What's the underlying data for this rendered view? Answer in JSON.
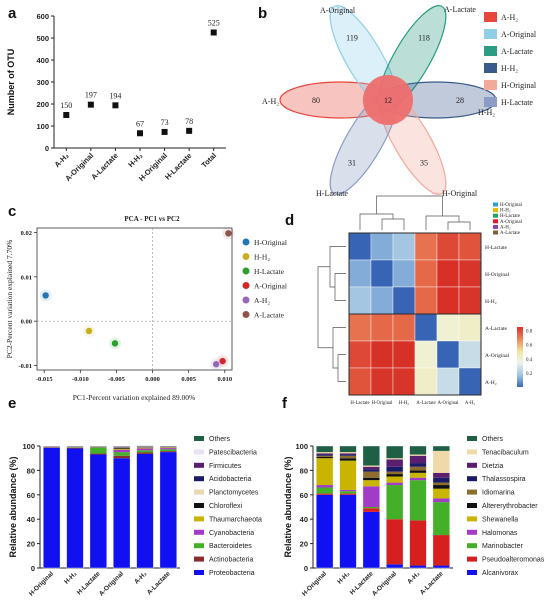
{
  "chart_data": [
    {
      "panel": "a",
      "type": "scatter",
      "categories": [
        "A-H₂",
        "A-Original",
        "A-Lactate",
        "H-H₂",
        "H-Original",
        "H-Lactate",
        "Total"
      ],
      "values": [
        150,
        197,
        194,
        67,
        73,
        78,
        525
      ],
      "ylabel": "Number of OTU",
      "ylim": [
        0,
        600
      ],
      "yticks": [
        "0",
        "100",
        "200",
        "300",
        "400",
        "500",
        "600"
      ]
    },
    {
      "panel": "b",
      "type": "venn",
      "sets": [
        {
          "name": "A-H₂",
          "unique": 80,
          "color": "#e8463c"
        },
        {
          "name": "A-Original",
          "unique": 119,
          "color": "#8fd0e8"
        },
        {
          "name": "A-Lactate",
          "unique": 118,
          "color": "#2a9d82"
        },
        {
          "name": "H-H₂",
          "unique": 28,
          "color": "#3a5a8c"
        },
        {
          "name": "H-Original",
          "unique": 35,
          "color": "#f4a89a"
        },
        {
          "name": "H-Lactate",
          "unique": 31,
          "color": "#8c9cc4"
        }
      ],
      "core": 12,
      "legend": [
        "A-H₂",
        "A-Original",
        "A-Lactate",
        "H-H₂",
        "H-Original",
        "H-Lactate"
      ]
    },
    {
      "panel": "c",
      "type": "scatter",
      "title": "PCA - PC1 vs PC2",
      "xlabel": "PC1-Percent variation explained 89.00%",
      "ylabel": "PC2-Percent variation explained 7.70%",
      "xlim": [
        -0.016,
        0.011
      ],
      "ylim": [
        -0.011,
        0.021
      ],
      "xticks": [
        "-0.015",
        "-0.010",
        "-0.005",
        "0.000",
        "0.005",
        "0.010"
      ],
      "yticks": [
        "-0.01",
        "0.00",
        "0.01",
        "0.02"
      ],
      "points": [
        {
          "name": "H-Original",
          "x": -0.0148,
          "y": 0.0058,
          "color": "#1f77b4"
        },
        {
          "name": "H-H₂",
          "x": -0.0088,
          "y": -0.0022,
          "color": "#c8b01e"
        },
        {
          "name": "H-Lactate",
          "x": -0.0052,
          "y": -0.005,
          "color": "#2ca02c"
        },
        {
          "name": "A-Original",
          "x": 0.0097,
          "y": -0.009,
          "color": "#d62728"
        },
        {
          "name": "A-H₂",
          "x": 0.0088,
          "y": -0.0097,
          "color": "#9467bd"
        },
        {
          "name": "A-Lactate",
          "x": 0.0105,
          "y": 0.0198,
          "color": "#8c564b"
        }
      ],
      "legend": [
        "H-Original",
        "H-H₂",
        "H-Lactate",
        "A-Original",
        "A-H₂",
        "A-Lactate"
      ]
    },
    {
      "panel": "d",
      "type": "heatmap",
      "rows": [
        "H-Lactate",
        "H-Original",
        "H-H₂",
        "A-Lactate",
        "A-Original",
        "A-H₂"
      ],
      "cols": [
        "H-Lactate",
        "H-Original",
        "H-H₂",
        "A-Lactate",
        "A-Original",
        "A-H₂"
      ],
      "values": [
        [
          0.0,
          0.12,
          0.18,
          0.72,
          0.8,
          0.78
        ],
        [
          0.12,
          0.0,
          0.12,
          0.74,
          0.86,
          0.84
        ],
        [
          0.18,
          0.12,
          0.0,
          0.74,
          0.86,
          0.84
        ],
        [
          0.72,
          0.74,
          0.74,
          0.0,
          0.4,
          0.42
        ],
        [
          0.8,
          0.86,
          0.86,
          0.4,
          0.0,
          0.26
        ],
        [
          0.78,
          0.84,
          0.84,
          0.42,
          0.26,
          0.0
        ]
      ],
      "colorbar_ticks": [
        "0.2",
        "0.4",
        "0.6",
        "0.8"
      ],
      "legend": [
        "H-Original",
        "H-H₂",
        "H-Lactate",
        "A-Original",
        "A-H₂",
        "A-Lactate"
      ],
      "legend_colors": [
        "#2e9fdf",
        "#e6b800",
        "#26a269",
        "#e01b24",
        "#9141ac",
        "#865e3c"
      ]
    },
    {
      "panel": "e",
      "type": "bar",
      "stacked": true,
      "categories": [
        "H-Original",
        "H-H₂",
        "H-Lactate",
        "A-Original",
        "A-H₂",
        "A-Lactate"
      ],
      "ylabel": "Relative abundance (%)",
      "ylim": [
        0,
        100
      ],
      "yticks": [
        "0",
        "20",
        "40",
        "60",
        "80",
        "100"
      ],
      "series": [
        {
          "name": "Proteobacteria",
          "color": "#1010f0",
          "values": [
            98.5,
            98.0,
            93.0,
            90.0,
            93.5,
            95.0
          ]
        },
        {
          "name": "Actinobacteria",
          "color": "#8c2d2d",
          "values": [
            0.3,
            0.4,
            0.8,
            2.0,
            1.2,
            0.8
          ]
        },
        {
          "name": "Bacteroidetes",
          "color": "#44b02a",
          "values": [
            0.2,
            0.3,
            5.0,
            3.0,
            1.8,
            1.5
          ]
        },
        {
          "name": "Cyanobacteria",
          "color": "#a23cc8",
          "values": [
            0.2,
            0.2,
            0.3,
            2.0,
            1.5,
            1.0
          ]
        },
        {
          "name": "Thaumarchaeota",
          "color": "#c9b400",
          "values": [
            0.1,
            0.2,
            0.2,
            0.8,
            0.6,
            0.4
          ]
        },
        {
          "name": "Chloroflexi",
          "color": "#111111",
          "values": [
            0.1,
            0.1,
            0.1,
            0.6,
            0.4,
            0.3
          ]
        },
        {
          "name": "Planctomycetes",
          "color": "#e8d8b0",
          "values": [
            0.1,
            0.1,
            0.1,
            0.4,
            0.3,
            0.2
          ]
        },
        {
          "name": "Acidobacteria",
          "color": "#1a1a66",
          "values": [
            0.1,
            0.1,
            0.1,
            0.4,
            0.3,
            0.2
          ]
        },
        {
          "name": "Firmicutes",
          "color": "#5a1e6e",
          "values": [
            0.1,
            0.2,
            0.1,
            0.3,
            0.2,
            0.2
          ]
        },
        {
          "name": "Patescibacteria",
          "color": "#e8e2f4",
          "values": [
            0.1,
            0.2,
            0.1,
            0.3,
            0.2,
            0.2
          ]
        },
        {
          "name": "Others",
          "color": "#1f5f45",
          "values": [
            0.2,
            0.2,
            0.2,
            0.2,
            0.3,
            0.2
          ]
        }
      ]
    },
    {
      "panel": "f",
      "type": "bar",
      "stacked": true,
      "categories": [
        "H-Original",
        "H-H₂",
        "H-Lactate",
        "A-Original",
        "A-H₂",
        "A-Lactate"
      ],
      "ylabel": "Relative abundance (%)",
      "ylim": [
        0,
        100
      ],
      "yticks": [
        "0",
        "20",
        "40",
        "60",
        "80",
        "100"
      ],
      "series": [
        {
          "name": "Alcanivorax",
          "color": "#1010f0",
          "values": [
            60,
            60,
            46,
            3,
            2,
            2
          ]
        },
        {
          "name": "Pseudoalteromonas",
          "color": "#d62020",
          "values": [
            1,
            1,
            3,
            37,
            37,
            25
          ]
        },
        {
          "name": "Marinobacter",
          "color": "#44b02a",
          "values": [
            5,
            2,
            1,
            28,
            33,
            27
          ]
        },
        {
          "name": "Halomonas",
          "color": "#a23cc8",
          "values": [
            2,
            1,
            17,
            2,
            2,
            3
          ]
        },
        {
          "name": "Shewanella",
          "color": "#c9b400",
          "values": [
            22,
            24,
            5,
            5,
            4,
            8
          ]
        },
        {
          "name": "Altererythrobacter",
          "color": "#111111",
          "values": [
            1,
            2,
            2,
            2,
            2,
            3
          ]
        },
        {
          "name": "Idiomarina",
          "color": "#8c6d2d",
          "values": [
            1,
            2,
            5,
            2,
            3,
            2
          ]
        },
        {
          "name": "Thalassospira",
          "color": "#1a1a66",
          "values": [
            1,
            1,
            2,
            4,
            3,
            4
          ]
        },
        {
          "name": "Dietzia",
          "color": "#5a1e6e",
          "values": [
            1,
            1,
            2,
            6,
            6,
            4
          ]
        },
        {
          "name": "Tenacibaculum",
          "color": "#efd9a8",
          "values": [
            1,
            1,
            1,
            1,
            1,
            18
          ]
        },
        {
          "name": "Others",
          "color": "#1f5f45",
          "values": [
            5,
            5,
            16,
            10,
            7,
            4
          ]
        }
      ]
    }
  ]
}
